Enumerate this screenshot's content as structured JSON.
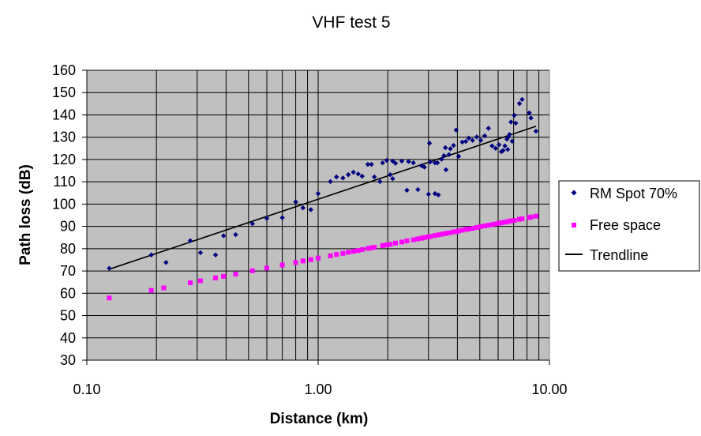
{
  "chart_data": {
    "type": "scatter",
    "title": "VHF test 5",
    "xlabel": "Distance (km)",
    "ylabel": "Path loss (dB)",
    "xscale": "log",
    "xlim": [
      0.1,
      10
    ],
    "ylim": [
      30,
      160
    ],
    "x_ticks": [
      0.1,
      1,
      10
    ],
    "x_tick_labels": [
      "0.10",
      "1.00",
      "10.00"
    ],
    "y_ticks": [
      30,
      40,
      50,
      60,
      70,
      80,
      90,
      100,
      110,
      120,
      130,
      140,
      150,
      160
    ],
    "y_tick_labels": [
      "30",
      "40",
      "50",
      "60",
      "70",
      "80",
      "90",
      "100",
      "110",
      "120",
      "130",
      "140",
      "150",
      "160"
    ],
    "grid": true,
    "plot_background": "#c0c0c0",
    "legend_position": "right",
    "series": [
      {
        "name": "RM Spot 70%",
        "marker": "diamond",
        "color": "#000080",
        "points": [
          [
            0.125,
            71.2
          ],
          [
            0.19,
            77.2
          ],
          [
            0.22,
            73.8
          ],
          [
            0.28,
            83.6
          ],
          [
            0.31,
            78.2
          ],
          [
            0.36,
            77.2
          ],
          [
            0.39,
            85.8
          ],
          [
            0.44,
            86.3
          ],
          [
            0.52,
            91.2
          ],
          [
            0.6,
            93.6
          ],
          [
            0.7,
            93.9
          ],
          [
            0.8,
            101
          ],
          [
            0.86,
            98.3
          ],
          [
            0.93,
            97.5
          ],
          [
            1.0,
            104.7
          ],
          [
            1.13,
            110.1
          ],
          [
            1.2,
            112.2
          ],
          [
            1.28,
            111.7
          ],
          [
            1.35,
            113.2
          ],
          [
            1.42,
            114.3
          ],
          [
            1.49,
            113.5
          ],
          [
            1.55,
            112.5
          ],
          [
            1.7,
            117.8
          ],
          [
            1.75,
            112.2
          ],
          [
            1.85,
            110.1
          ],
          [
            1.9,
            118.5
          ],
          [
            1.98,
            119.6
          ],
          [
            2.05,
            113.2
          ],
          [
            2.1,
            111.4
          ],
          [
            2.3,
            119.3
          ],
          [
            2.42,
            106.2
          ],
          [
            2.58,
            118.5
          ],
          [
            2.7,
            106.5
          ],
          [
            2.8,
            117.2
          ],
          [
            2.88,
            116.6
          ],
          [
            3.0,
            104.4
          ],
          [
            3.05,
            118.9
          ],
          [
            3.2,
            118.5
          ],
          [
            3.28,
            118.5
          ],
          [
            3.31,
            104.1
          ],
          [
            3.42,
            120.1
          ],
          [
            3.5,
            121.7
          ],
          [
            3.55,
            125.3
          ],
          [
            3.68,
            122.2
          ],
          [
            3.73,
            124.8
          ],
          [
            3.85,
            126.3
          ],
          [
            3.95,
            133.2
          ],
          [
            4.05,
            121.4
          ],
          [
            4.2,
            127.8
          ],
          [
            4.35,
            128.1
          ],
          [
            4.48,
            129.6
          ],
          [
            4.65,
            128.6
          ],
          [
            4.85,
            130.1
          ],
          [
            5.05,
            128.6
          ],
          [
            5.25,
            130.6
          ],
          [
            5.45,
            134.0
          ],
          [
            5.65,
            126.1
          ],
          [
            5.85,
            125.0
          ],
          [
            6.05,
            126.6
          ],
          [
            6.2,
            123.5
          ],
          [
            6.3,
            124.0
          ],
          [
            6.42,
            126.1
          ],
          [
            6.55,
            129.1
          ],
          [
            6.65,
            130.1
          ],
          [
            6.72,
            131.2
          ],
          [
            6.82,
            136.8
          ],
          [
            7.05,
            139.8
          ],
          [
            7.15,
            136.3
          ],
          [
            7.42,
            145.1
          ],
          [
            7.62,
            146.9
          ],
          [
            8.18,
            140.9
          ],
          [
            8.32,
            138.6
          ],
          [
            8.75,
            132.7
          ],
          [
            3.03,
            127.3
          ],
          [
            3.2,
            104.7
          ],
          [
            3.57,
            115.4
          ],
          [
            2.1,
            119.3
          ],
          [
            2.16,
            118.3
          ],
          [
            2.46,
            119.1
          ],
          [
            1.64,
            117.8
          ],
          [
            6.9,
            128.2
          ],
          [
            6.6,
            124.5
          ]
        ]
      },
      {
        "name": "Free space",
        "marker": "square",
        "color": "#ff00ff",
        "points": [
          [
            0.125,
            57.9
          ],
          [
            0.19,
            61.3
          ],
          [
            0.215,
            62.4
          ],
          [
            0.28,
            64.7
          ],
          [
            0.31,
            65.6
          ],
          [
            0.36,
            66.9
          ],
          [
            0.39,
            67.6
          ],
          [
            0.44,
            68.6
          ],
          [
            0.52,
            70.1
          ],
          [
            0.6,
            71.3
          ],
          [
            0.7,
            72.7
          ],
          [
            0.8,
            73.8
          ],
          [
            0.86,
            74.5
          ],
          [
            0.93,
            75.1
          ],
          [
            1.0,
            75.8
          ],
          [
            1.13,
            76.8
          ],
          [
            1.2,
            77.4
          ],
          [
            1.28,
            77.9
          ],
          [
            1.35,
            78.4
          ],
          [
            1.42,
            78.8
          ],
          [
            1.49,
            79.2
          ],
          [
            1.55,
            79.6
          ],
          [
            1.64,
            80.1
          ],
          [
            1.7,
            80.4
          ],
          [
            1.75,
            80.6
          ],
          [
            1.9,
            81.4
          ],
          [
            1.98,
            81.7
          ],
          [
            2.05,
            82.0
          ],
          [
            2.16,
            82.5
          ],
          [
            2.3,
            83.0
          ],
          [
            2.42,
            83.5
          ],
          [
            2.58,
            84.0
          ],
          [
            2.7,
            84.4
          ],
          [
            2.8,
            84.7
          ],
          [
            2.88,
            85.0
          ],
          [
            3.0,
            85.3
          ],
          [
            3.05,
            85.5
          ],
          [
            3.2,
            85.9
          ],
          [
            3.31,
            86.2
          ],
          [
            3.42,
            86.5
          ],
          [
            3.55,
            86.8
          ],
          [
            3.68,
            87.1
          ],
          [
            3.85,
            87.5
          ],
          [
            3.95,
            87.7
          ],
          [
            4.05,
            87.9
          ],
          [
            4.2,
            88.3
          ],
          [
            4.35,
            88.6
          ],
          [
            4.48,
            88.8
          ],
          [
            4.65,
            89.1
          ],
          [
            4.85,
            89.5
          ],
          [
            5.05,
            89.9
          ],
          [
            5.25,
            90.2
          ],
          [
            5.45,
            90.5
          ],
          [
            5.65,
            90.8
          ],
          [
            5.85,
            91.1
          ],
          [
            6.05,
            91.4
          ],
          [
            6.2,
            91.6
          ],
          [
            6.42,
            91.9
          ],
          [
            6.65,
            92.2
          ],
          [
            6.82,
            92.5
          ],
          [
            7.05,
            92.7
          ],
          [
            7.42,
            93.2
          ],
          [
            7.62,
            93.4
          ],
          [
            8.18,
            94.0
          ],
          [
            8.32,
            94.2
          ],
          [
            8.75,
            94.6
          ]
        ]
      },
      {
        "name": "Trendline",
        "type": "line",
        "color": "#000000",
        "points": [
          [
            0.125,
            70.8
          ],
          [
            8.75,
            134.9
          ]
        ]
      }
    ]
  }
}
